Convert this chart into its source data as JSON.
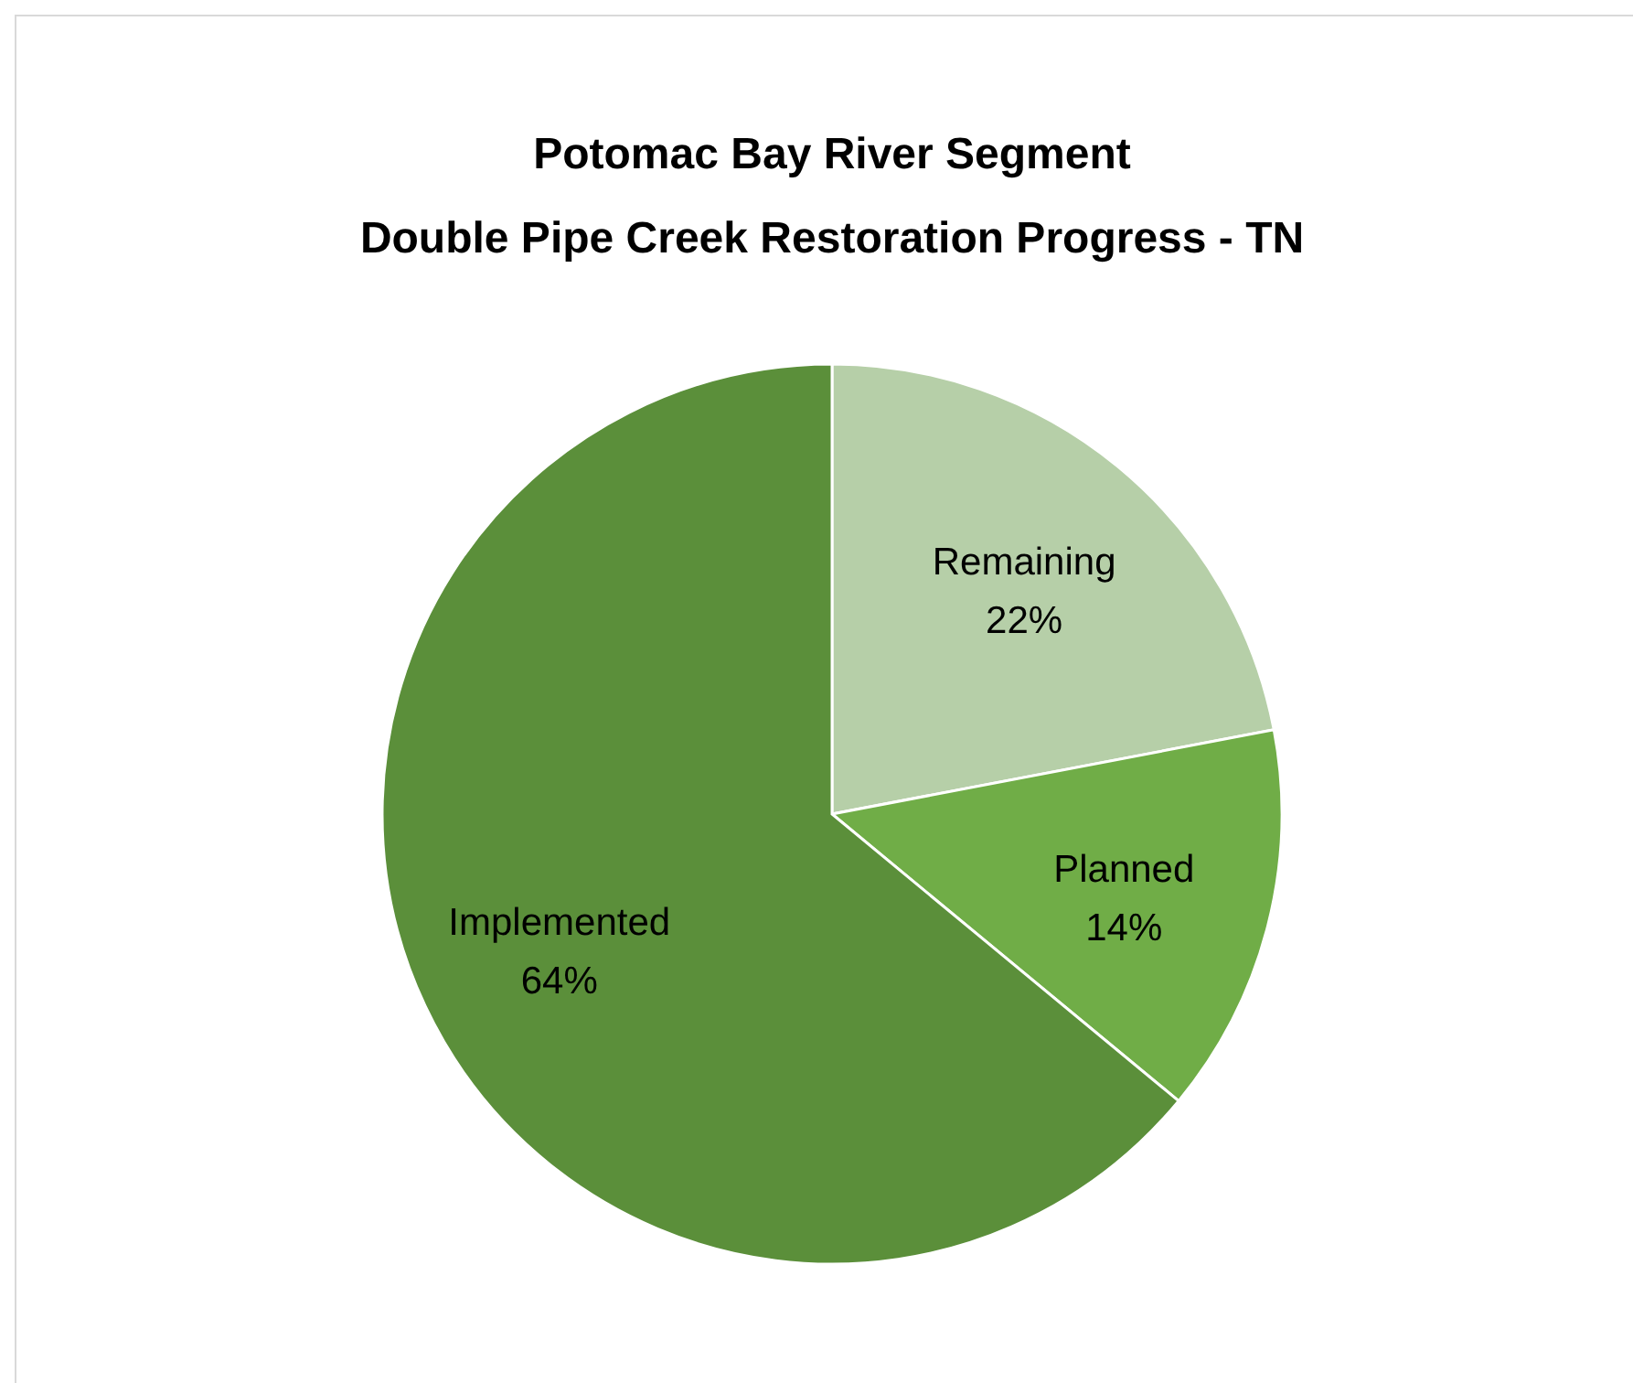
{
  "chart_data": {
    "type": "pie",
    "title": "Potomac Bay River Segment\nDouble Pipe Creek Restoration Progress - TN",
    "categories": [
      "Remaining",
      "Planned",
      "Implemented"
    ],
    "values": [
      22,
      14,
      64
    ],
    "colors": [
      "#b6cfa8",
      "#70ad47",
      "#5b8f3a"
    ],
    "value_labels": [
      "22%",
      "14%",
      "64%"
    ]
  }
}
